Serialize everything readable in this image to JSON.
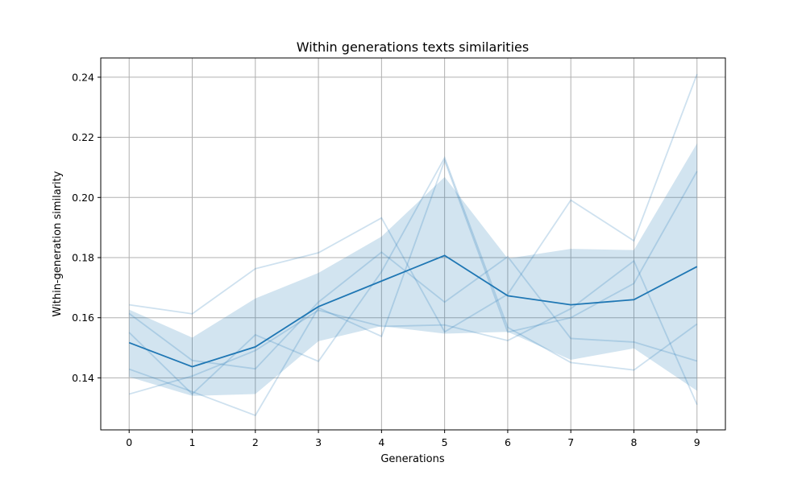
{
  "chart_data": {
    "type": "line",
    "title": "Within generations texts similarities",
    "xlabel": "Generations",
    "ylabel": "Within-generation similarity",
    "x": [
      0,
      1,
      2,
      3,
      4,
      5,
      6,
      7,
      8,
      9
    ],
    "xticks": [
      "0",
      "1",
      "2",
      "3",
      "4",
      "5",
      "6",
      "7",
      "8",
      "9"
    ],
    "yticks": [
      "0.14",
      "0.16",
      "0.18",
      "0.20",
      "0.22",
      "0.24"
    ],
    "ytick_values": [
      0.14,
      0.16,
      0.18,
      0.2,
      0.22,
      0.24
    ],
    "xlim": [
      -0.45,
      9.45
    ],
    "ylim": [
      0.1227,
      0.2464
    ],
    "grid": true,
    "colors": {
      "mean": "#1f77b4",
      "runs": "#1f77b4",
      "band": "#1f77b4"
    },
    "mean": [
      0.1517,
      0.1437,
      0.1503,
      0.1637,
      0.1722,
      0.1807,
      0.1673,
      0.1643,
      0.166,
      0.177
    ],
    "band_upper": [
      0.1627,
      0.1534,
      0.1664,
      0.1749,
      0.187,
      0.2068,
      0.1797,
      0.1829,
      0.1825,
      0.218
    ],
    "band_lower": [
      0.1403,
      0.134,
      0.1346,
      0.1522,
      0.1572,
      0.1547,
      0.1553,
      0.146,
      0.1498,
      0.1357
    ],
    "runs": [
      [
        0.1643,
        0.1613,
        0.1763,
        0.1816,
        0.1932,
        0.1553,
        0.1678,
        0.1991,
        0.1856,
        0.241
      ],
      [
        0.1614,
        0.1458,
        0.143,
        0.1652,
        0.1818,
        0.1652,
        0.1803,
        0.1531,
        0.1519,
        0.1456
      ],
      [
        0.1551,
        0.1346,
        0.1543,
        0.1455,
        0.1753,
        0.2132,
        0.1568,
        0.1451,
        0.1426,
        0.1579
      ],
      [
        0.1429,
        0.1354,
        0.1275,
        0.1633,
        0.1538,
        0.2123,
        0.1552,
        0.16,
        0.1714,
        0.2087
      ],
      [
        0.1346,
        0.1406,
        0.1491,
        0.1625,
        0.1571,
        0.1576,
        0.1524,
        0.163,
        0.1789,
        0.1311
      ]
    ]
  }
}
